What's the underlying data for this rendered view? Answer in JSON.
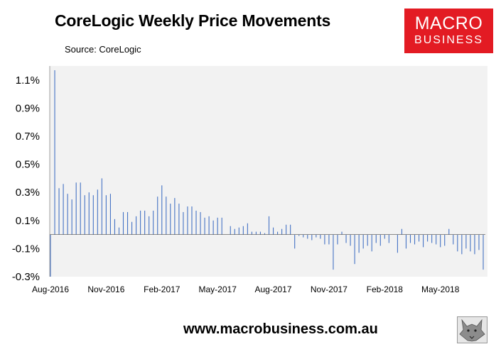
{
  "title": "CoreLogic Weekly Price Movements",
  "source": "Source: CoreLogic",
  "logo": {
    "line1": "MACRO",
    "line2": "BUSINESS"
  },
  "footer": "www.macrobusiness.com.au",
  "colors": {
    "bar": "#4472c4",
    "plot_bg": "#f2f2f2",
    "logo_bg": "#e31b23"
  },
  "chart_data": {
    "type": "bar",
    "title": "CoreLogic Weekly Price Movements",
    "y_unit": "%",
    "ylim": [
      -0.3,
      1.2
    ],
    "y_ticks": [
      "1.1%",
      "0.9%",
      "0.7%",
      "0.5%",
      "0.3%",
      "0.1%",
      "-0.1%",
      "-0.3%"
    ],
    "x_ticks": [
      "Aug-2016",
      "Nov-2016",
      "Feb-2017",
      "May-2017",
      "Aug-2017",
      "Nov-2017",
      "Feb-2018",
      "May-2018"
    ],
    "grid": false,
    "values": [
      -0.3,
      1.17,
      0.33,
      0.36,
      0.29,
      0.25,
      0.37,
      0.37,
      0.28,
      0.3,
      0.28,
      0.32,
      0.4,
      0.28,
      0.29,
      0.11,
      0.05,
      0.16,
      0.16,
      0.09,
      0.13,
      0.17,
      0.17,
      0.13,
      0.17,
      0.27,
      0.35,
      0.27,
      0.22,
      0.26,
      0.22,
      0.16,
      0.2,
      0.2,
      0.17,
      0.16,
      0.12,
      0.13,
      0.1,
      0.12,
      0.12,
      0.0,
      0.06,
      0.04,
      0.05,
      0.06,
      0.08,
      0.02,
      0.02,
      0.02,
      0.01,
      0.13,
      0.05,
      0.02,
      0.04,
      0.07,
      0.07,
      -0.1,
      -0.01,
      -0.02,
      -0.03,
      -0.04,
      -0.02,
      -0.03,
      -0.07,
      -0.07,
      -0.25,
      -0.07,
      0.02,
      -0.06,
      -0.08,
      -0.21,
      -0.13,
      -0.1,
      -0.08,
      -0.12,
      -0.06,
      -0.08,
      -0.03,
      -0.06,
      0.0,
      -0.13,
      0.04,
      -0.1,
      -0.06,
      -0.07,
      -0.05,
      -0.09,
      -0.05,
      -0.06,
      -0.07,
      -0.09,
      -0.08,
      0.04,
      -0.07,
      -0.12,
      -0.14,
      -0.1,
      -0.12,
      -0.14,
      -0.11,
      -0.25
    ]
  }
}
